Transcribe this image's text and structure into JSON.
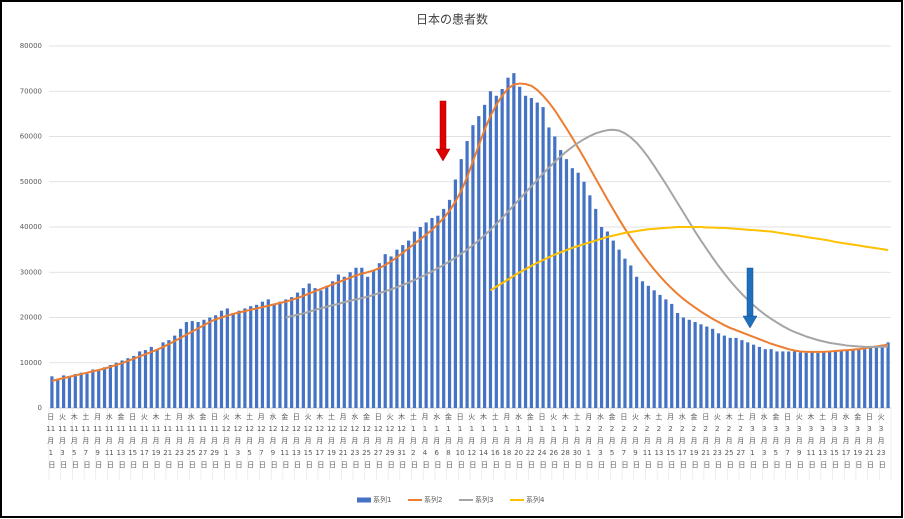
{
  "chart_data": {
    "type": "bar",
    "title": "日本の患者数",
    "categories": [
      "日 11 月 1 日",
      null,
      "火 11 月 3 日",
      null,
      "木 11 月 5 日",
      null,
      "土 11 月 7 日",
      null,
      "月 11 月 9 日",
      null,
      "水 11 月 11 日",
      null,
      "金 11 月 13 日",
      null,
      "日 11 月 15 日",
      null,
      "火 11 月 17 日",
      null,
      "木 11 月 19 日",
      null,
      "土 11 月 21 日",
      null,
      "月 11 月 23 日",
      null,
      "水 11 月 25 日",
      null,
      "金 11 月 27 日",
      null,
      "日 11 月 29 日",
      null,
      "火 12 月 1 日",
      null,
      "木 12 月 3 日",
      null,
      "土 12 月 5 日",
      null,
      "月 12 月 7 日",
      null,
      "水 12 月 9 日",
      null,
      "金 12 月 11 日",
      null,
      "日 12 月 13 日",
      null,
      "火 12 月 15 日",
      null,
      "木 12 月 17 日",
      null,
      "土 12 月 19 日",
      null,
      "月 12 月 21 日",
      null,
      "水 12 月 23 日",
      null,
      "金 12 月 25 日",
      null,
      "日 12 月 27 日",
      null,
      "火 12 月 29 日",
      null,
      "木 12 月 31 日",
      null,
      "土 1 月 2 日",
      null,
      "月 1 月 4 日",
      null,
      "水 1 月 6 日",
      null,
      "金 1 月 8 日",
      null,
      "日 1 月 10 日",
      null,
      "火 1 月 12 日",
      null,
      "木 1 月 14 日",
      null,
      "土 1 月 16 日",
      null,
      "月 1 月 18 日",
      null,
      "水 1 月 20 日",
      null,
      "金 1 月 22 日",
      null,
      "日 1 月 24 日",
      null,
      "火 1 月 26 日",
      null,
      "木 1 月 28 日",
      null,
      "土 1 月 30 日",
      null,
      "月 2 月 1 日",
      null,
      "水 2 月 3 日",
      null,
      "金 2 月 5 日",
      null,
      "日 2 月 7 日",
      null,
      "火 2 月 9 日",
      null,
      "木 2 月 11 日",
      null,
      "土 2 月 13 日",
      null,
      "月 2 月 15 日",
      null,
      "水 2 月 17 日",
      null,
      "金 2 月 19 日",
      null,
      "日 2 月 21 日",
      null,
      "火 2 月 23 日",
      null,
      "木 2 月 25 日",
      null,
      "土 2 月 27 日",
      null,
      "月 3 月 1 日",
      null,
      "水 3 月 3 日",
      null,
      "金 3 月 5 日",
      null,
      "日 3 月 7 日",
      null,
      "火 3 月 9 日",
      null,
      "木 3 月 11 日",
      null,
      "土 3 月 13 日",
      null,
      "月 3 月 15 日",
      null,
      "水 3 月 17 日",
      null,
      "金 3 月 19 日",
      null,
      "日 3 月 21 日",
      null,
      "火 3 月 23 日",
      null
    ],
    "series": [
      {
        "name": "系列1",
        "type": "bar",
        "color": "#4472c4",
        "values": [
          7000,
          6500,
          7200,
          7000,
          7500,
          7800,
          7600,
          8500,
          8200,
          9000,
          9500,
          10000,
          10500,
          11000,
          11500,
          12500,
          12800,
          13500,
          13000,
          14500,
          15000,
          16000,
          17500,
          19000,
          19200,
          19000,
          19500,
          20000,
          20500,
          21500,
          22000,
          21000,
          21500,
          22000,
          22500,
          22800,
          23500,
          24000,
          23000,
          23500,
          24000,
          24500,
          25500,
          26500,
          27500,
          26500,
          26000,
          27000,
          28000,
          29500,
          29000,
          30000,
          31000,
          31000,
          29000,
          30500,
          32000,
          34000,
          33500,
          35000,
          36000,
          37000,
          39000,
          40000,
          41000,
          42000,
          42500,
          44000,
          46000,
          50500,
          55000,
          59000,
          62500,
          64500,
          67000,
          70000,
          69000,
          70500,
          73000,
          74000,
          71000,
          69000,
          68500,
          67500,
          66500,
          62000,
          60000,
          57000,
          55000,
          53000,
          52000,
          50000,
          47000,
          44000,
          40000,
          39000,
          37000,
          35000,
          33000,
          31500,
          29000,
          28000,
          27000,
          26000,
          25000,
          24000,
          23000,
          21000,
          20000,
          19500,
          19000,
          18500,
          18000,
          17500,
          16500,
          16000,
          15500,
          15500,
          15000,
          14500,
          14000,
          13500,
          13000,
          13000,
          12500,
          12500,
          12500,
          12500,
          12300,
          12200,
          12500,
          12200,
          12500,
          12500,
          12600,
          12700,
          12700,
          12800,
          12900,
          13000,
          13300,
          13800,
          14000,
          14500
        ]
      },
      {
        "name": "系列2",
        "type": "line",
        "color": "#ed7d31",
        "values": [
          6000,
          6300,
          6600,
          6900,
          7200,
          7500,
          7800,
          8100,
          8400,
          8700,
          9100,
          9500,
          9900,
          10400,
          10900,
          11400,
          11900,
          12400,
          12900,
          13500,
          14100,
          14800,
          15500,
          16200,
          16900,
          17600,
          18300,
          19000,
          19600,
          20000,
          20400,
          20800,
          21100,
          21400,
          21700,
          22000,
          22300,
          22600,
          22900,
          23200,
          23500,
          23900,
          24300,
          24800,
          25300,
          25800,
          26300,
          26800,
          27300,
          27800,
          28300,
          28800,
          29300,
          29700,
          30000,
          30400,
          30900,
          31600,
          32400,
          33300,
          34300,
          35300,
          36300,
          37300,
          38300,
          39400,
          40600,
          42000,
          43600,
          45600,
          48000,
          51000,
          54500,
          58000,
          61500,
          64500,
          67000,
          69000,
          70600,
          71500,
          71700,
          71600,
          71200,
          70300,
          69000,
          67500,
          65800,
          63800,
          61800,
          59700,
          57500,
          55300,
          53000,
          50700,
          48400,
          46100,
          43900,
          41700,
          39600,
          37600,
          35700,
          33900,
          32200,
          30600,
          29100,
          27700,
          26400,
          25200,
          24100,
          23100,
          22200,
          21300,
          20500,
          19700,
          19000,
          18300,
          17700,
          17200,
          16700,
          16200,
          15700,
          15200,
          14700,
          14200,
          13800,
          13400,
          13000,
          12700,
          12500,
          12400,
          12400,
          12400,
          12400,
          12500,
          12600,
          12700,
          12800,
          12900,
          13000,
          13200,
          13400,
          13600,
          13800,
          14000
        ]
      },
      {
        "name": "系列3",
        "type": "line",
        "color": "#a5a5a5",
        "values": [
          null,
          null,
          null,
          null,
          null,
          null,
          null,
          null,
          null,
          null,
          null,
          null,
          null,
          null,
          null,
          null,
          null,
          null,
          null,
          null,
          null,
          null,
          null,
          null,
          null,
          null,
          null,
          null,
          null,
          null,
          null,
          null,
          null,
          null,
          null,
          null,
          null,
          null,
          null,
          null,
          20000,
          20300,
          20600,
          20900,
          21300,
          21700,
          22000,
          22400,
          22700,
          23000,
          23400,
          23700,
          24000,
          24300,
          24600,
          25000,
          25400,
          25800,
          26200,
          26700,
          27200,
          27700,
          28300,
          28900,
          29500,
          30200,
          30900,
          31600,
          32400,
          33200,
          34100,
          35000,
          36000,
          37000,
          38200,
          39400,
          40700,
          42000,
          43400,
          44800,
          46200,
          47600,
          49000,
          50400,
          51800,
          53100,
          54400,
          55600,
          56700,
          57700,
          58600,
          59400,
          60100,
          60700,
          61100,
          61400,
          61500,
          61300,
          60700,
          59800,
          58600,
          57100,
          55400,
          53500,
          51500,
          49500,
          47400,
          45300,
          43200,
          41100,
          39000,
          37000,
          35100,
          33200,
          31400,
          29700,
          28100,
          26600,
          25200,
          23900,
          22700,
          21600,
          20600,
          19700,
          18900,
          18100,
          17400,
          16800,
          16300,
          15800,
          15400,
          15000,
          14700,
          14400,
          14200,
          14000,
          13800,
          13700,
          13600,
          13500,
          13500,
          13500,
          13500,
          13600
        ]
      },
      {
        "name": "系列4",
        "type": "line",
        "color": "#ffc000",
        "values": [
          null,
          null,
          null,
          null,
          null,
          null,
          null,
          null,
          null,
          null,
          null,
          null,
          null,
          null,
          null,
          null,
          null,
          null,
          null,
          null,
          null,
          null,
          null,
          null,
          null,
          null,
          null,
          null,
          null,
          null,
          null,
          null,
          null,
          null,
          null,
          null,
          null,
          null,
          null,
          null,
          null,
          null,
          null,
          null,
          null,
          null,
          null,
          null,
          null,
          null,
          null,
          null,
          null,
          null,
          null,
          null,
          null,
          null,
          null,
          null,
          null,
          null,
          null,
          null,
          null,
          null,
          null,
          null,
          null,
          null,
          null,
          null,
          null,
          null,
          null,
          26000,
          26800,
          27600,
          28400,
          29200,
          30000,
          30700,
          31400,
          32100,
          32700,
          33300,
          33900,
          34400,
          34900,
          35400,
          35800,
          36200,
          36600,
          37000,
          37400,
          37800,
          38100,
          38400,
          38700,
          38900,
          39100,
          39300,
          39500,
          39600,
          39700,
          39800,
          39900,
          40000,
          40000,
          40000,
          40000,
          40000,
          39900,
          39900,
          39800,
          39800,
          39700,
          39600,
          39500,
          39400,
          39300,
          39200,
          39100,
          39000,
          38800,
          38600,
          38400,
          38200,
          38000,
          37800,
          37600,
          37400,
          37200,
          37000,
          36700,
          36500,
          36300,
          36100,
          35900,
          35700,
          35500,
          35300,
          35100,
          34900
        ]
      }
    ],
    "ylim": [
      0,
      80000
    ],
    "yticks": [
      0,
      10000,
      20000,
      30000,
      40000,
      50000,
      60000,
      70000,
      80000
    ],
    "grid": true,
    "legend": "bottom"
  }
}
